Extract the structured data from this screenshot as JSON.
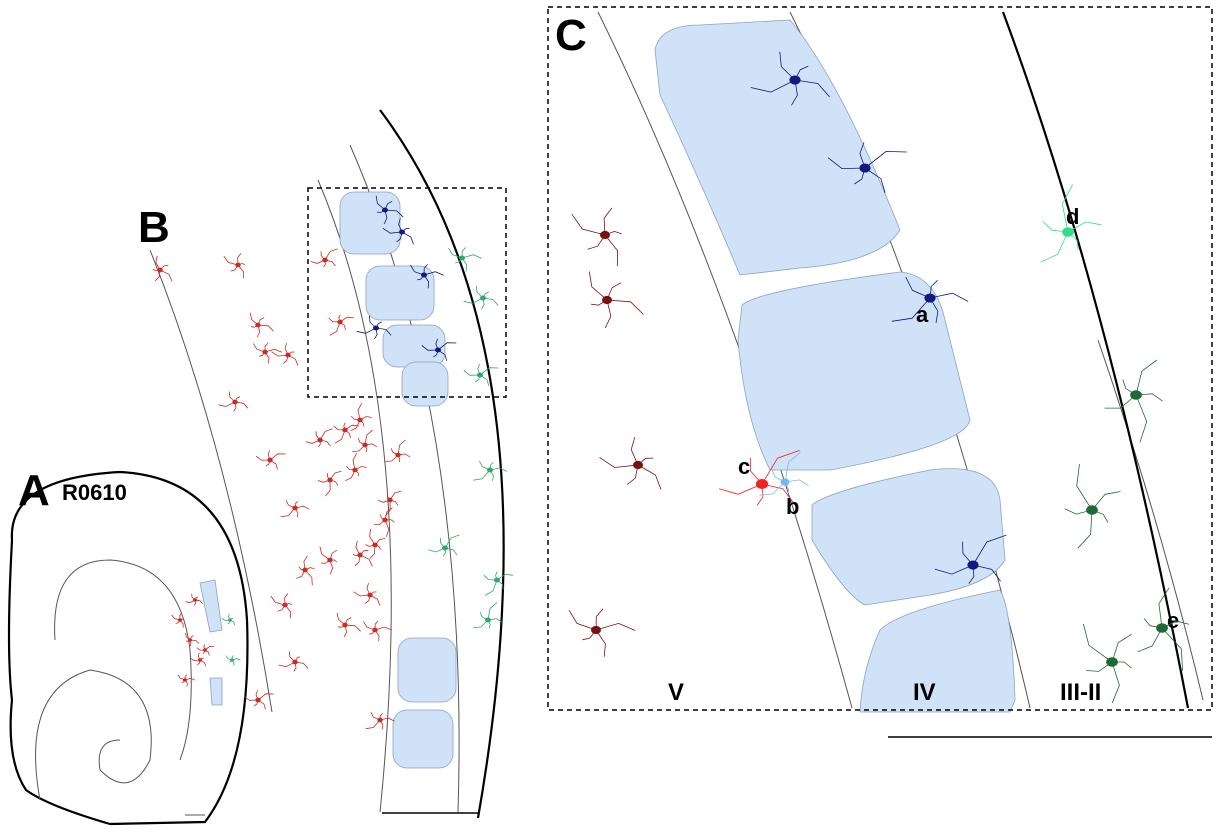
{
  "panels": [
    {
      "label": "A",
      "subtitle": "R0610"
    },
    {
      "label": "B"
    },
    {
      "label": "C",
      "layers": [
        "V",
        "IV",
        "III-II"
      ],
      "cells": [
        "a",
        "b",
        "c",
        "d",
        "e"
      ]
    }
  ]
}
